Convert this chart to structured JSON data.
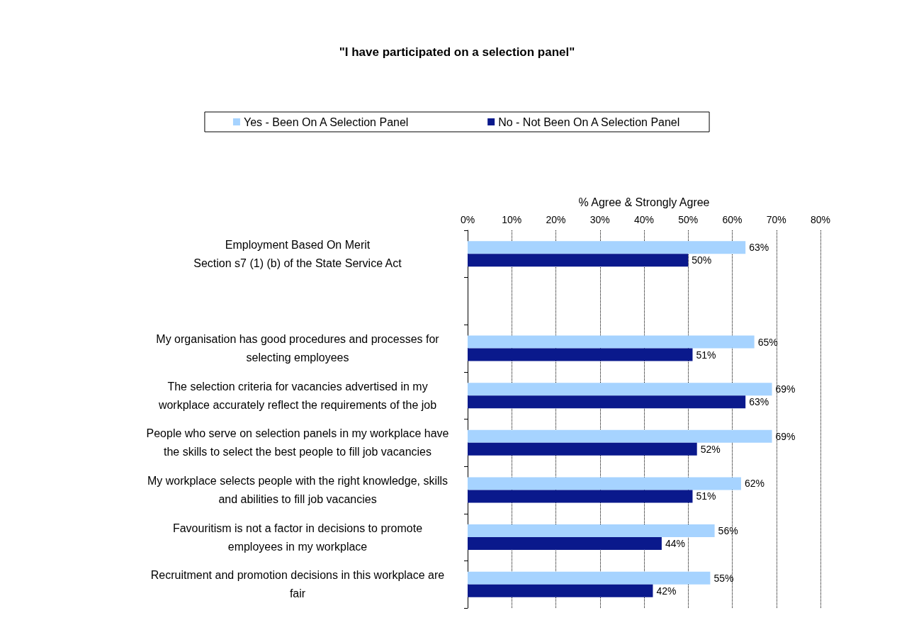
{
  "chart_data": {
    "type": "bar",
    "orientation": "horizontal",
    "title": "\"I have participated on a selection panel\"",
    "xlabel": "% Agree & Strongly Agree",
    "categories": [
      "Employment Based On Merit\nSection s7 (1) (b) of the State Service Act",
      null,
      "My organisation has good procedures and processes for\nselecting employees",
      "The selection criteria for vacancies advertised in my\nworkplace accurately reflect the requirements of the job",
      "People who serve on selection panels in my workplace have\nthe skills to select the best people to fill job vacancies",
      "My workplace selects people with the right knowledge, skills\nand abilities to fill job vacancies",
      "Favouritism is not a factor in decisions to promote\nemployees in my workplace",
      "Recruitment and promotion decisions in this workplace are\nfair"
    ],
    "series": [
      {
        "name": "Yes - Been On A Selection Panel",
        "color": "#a6d3ff",
        "values": [
          63,
          null,
          65,
          69,
          69,
          62,
          56,
          55
        ],
        "value_labels": [
          "63%",
          null,
          "65%",
          "69%",
          "69%",
          "62%",
          "56%",
          "55%"
        ]
      },
      {
        "name": "No - Not Been On A Selection Panel",
        "color": "#0a198c",
        "values": [
          50,
          null,
          51,
          63,
          52,
          51,
          44,
          42
        ],
        "value_labels": [
          "50%",
          null,
          "51%",
          "63%",
          "52%",
          "51%",
          "44%",
          "42%"
        ]
      }
    ],
    "xlim": [
      0,
      80
    ],
    "xticks": [
      {
        "value": 0,
        "label": "0%"
      },
      {
        "value": 10,
        "label": "10%"
      },
      {
        "value": 20,
        "label": "20%"
      },
      {
        "value": 30,
        "label": "30%"
      },
      {
        "value": 40,
        "label": "40%"
      },
      {
        "value": 50,
        "label": "50%"
      },
      {
        "value": 60,
        "label": "60%"
      },
      {
        "value": 70,
        "label": "70%"
      },
      {
        "value": 80,
        "label": "80%"
      }
    ],
    "grid": "x",
    "legend": "top",
    "line_style": "dotted"
  }
}
